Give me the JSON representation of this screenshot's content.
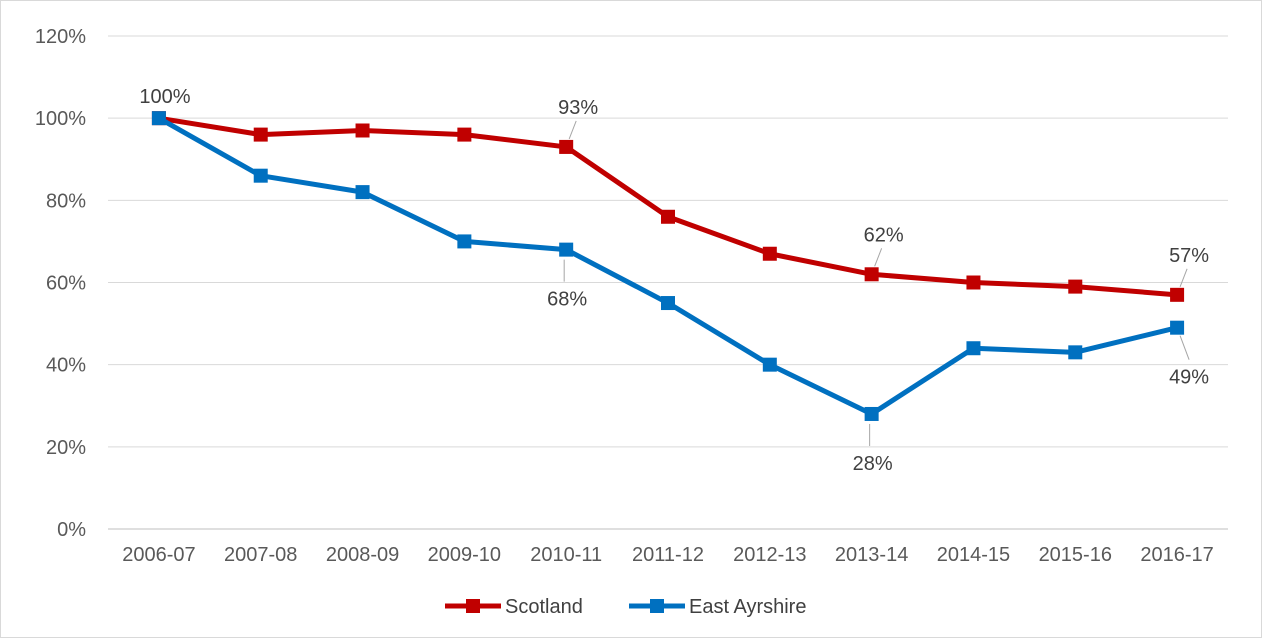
{
  "chart_data": {
    "type": "line",
    "categories": [
      "2006-07",
      "2007-08",
      "2008-09",
      "2009-10",
      "2010-11",
      "2011-12",
      "2012-13",
      "2013-14",
      "2014-15",
      "2015-16",
      "2016-17"
    ],
    "series": [
      {
        "name": "Scotland",
        "color": "#c00000",
        "values": [
          100,
          96,
          97,
          96,
          93,
          76,
          67,
          62,
          60,
          59,
          57
        ]
      },
      {
        "name": "East Ayrshire",
        "color": "#0070c0",
        "values": [
          100,
          86,
          82,
          70,
          68,
          55,
          40,
          28,
          44,
          43,
          49
        ]
      }
    ],
    "data_labels": [
      {
        "series": 0,
        "index": 0,
        "text": "100%",
        "position": "above"
      },
      {
        "series": 0,
        "index": 4,
        "text": "93%",
        "position": "above"
      },
      {
        "series": 0,
        "index": 7,
        "text": "62%",
        "position": "above"
      },
      {
        "series": 0,
        "index": 10,
        "text": "57%",
        "position": "above"
      },
      {
        "series": 1,
        "index": 4,
        "text": "68%",
        "position": "below"
      },
      {
        "series": 1,
        "index": 7,
        "text": "28%",
        "position": "below"
      },
      {
        "series": 1,
        "index": 10,
        "text": "49%",
        "position": "below"
      }
    ],
    "y_ticks": [
      "0%",
      "20%",
      "40%",
      "60%",
      "80%",
      "100%",
      "120%"
    ],
    "ylim": [
      0,
      120
    ],
    "title": "",
    "xlabel": "",
    "ylabel": "",
    "grid": true,
    "legend_position": "bottom"
  }
}
